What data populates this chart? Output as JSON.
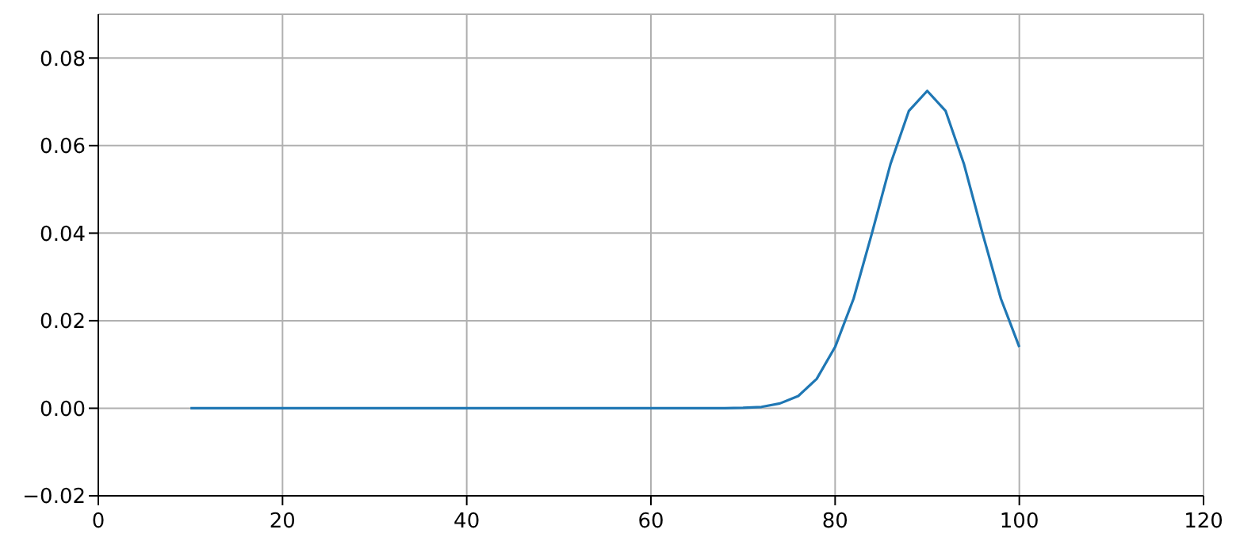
{
  "chart_data": {
    "type": "line",
    "x": [
      10,
      20,
      30,
      40,
      50,
      60,
      65,
      68,
      70,
      72,
      74,
      76,
      78,
      80,
      82,
      84,
      86,
      88,
      90,
      92,
      94,
      96,
      98,
      100
    ],
    "series": [
      {
        "color": "#1f77b4",
        "values": [
          0,
          0,
          0,
          0,
          0,
          0,
          0,
          0,
          0.0001,
          0.0003,
          0.0011,
          0.0028,
          0.0067,
          0.014,
          0.025,
          0.04,
          0.0557,
          0.0679,
          0.0725,
          0.0679,
          0.0557,
          0.04,
          0.025,
          0.014
        ]
      }
    ],
    "xlim": [
      0,
      120
    ],
    "xticks": [
      0,
      20,
      40,
      60,
      80,
      100,
      120
    ],
    "ylim": [
      -0.02,
      0.09
    ],
    "yticks": [
      {
        "value": -0.02,
        "label": "−0.02"
      },
      {
        "value": 0,
        "label": "0.00"
      },
      {
        "value": 0.02,
        "label": "0.02"
      },
      {
        "value": 0.04,
        "label": "0.04"
      },
      {
        "value": 0.06,
        "label": "0.06"
      },
      {
        "value": 0.08,
        "label": "0.08"
      }
    ],
    "grid": true,
    "marker": "none",
    "line_style": "solid"
  }
}
